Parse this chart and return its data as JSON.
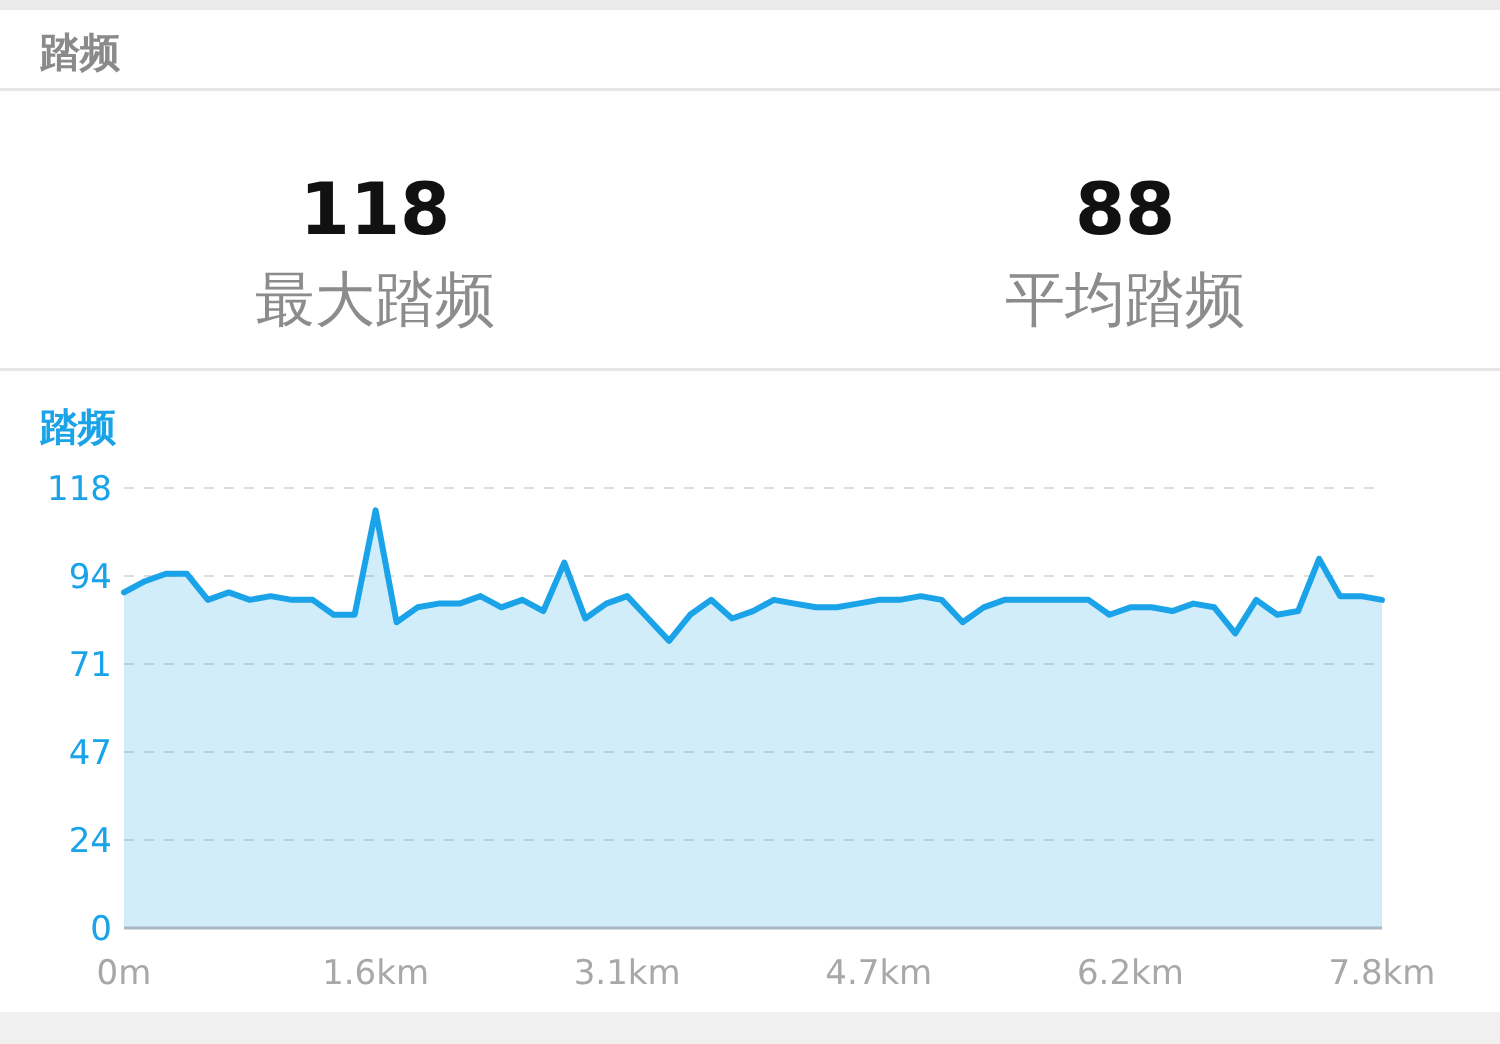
{
  "chart_data": [
    {
      "type": "other",
      "title": "踏频",
      "annotations": [
        "118",
        "最大踏频",
        "88",
        "平均踏频"
      ]
    },
    {
      "type": "area",
      "title": "踏频",
      "x": [
        0,
        0.13,
        0.26,
        0.39,
        0.52,
        0.65,
        0.78,
        0.91,
        1.04,
        1.17,
        1.3,
        1.43,
        1.56,
        1.69,
        1.82,
        1.95,
        2.08,
        2.21,
        2.34,
        2.47,
        2.6,
        2.73,
        2.86,
        2.99,
        3.12,
        3.25,
        3.38,
        3.51,
        3.64,
        3.77,
        3.9,
        4.03,
        4.16,
        4.29,
        4.42,
        4.55,
        4.68,
        4.81,
        4.94,
        5.07,
        5.2,
        5.33,
        5.46,
        5.59,
        5.72,
        5.85,
        5.98,
        6.11,
        6.24,
        6.37,
        6.5,
        6.63,
        6.76,
        6.89,
        7.02,
        7.15,
        7.28,
        7.41,
        7.54,
        7.67,
        7.8
      ],
      "xlim": [
        0,
        7.8
      ],
      "xticks": [
        {
          "value": 0,
          "label": "0m"
        },
        {
          "value": 1.56,
          "label": "1.6km"
        },
        {
          "value": 3.12,
          "label": "3.1km"
        },
        {
          "value": 4.68,
          "label": "4.7km"
        },
        {
          "value": 6.24,
          "label": "6.2km"
        },
        {
          "value": 7.8,
          "label": "7.8km"
        }
      ],
      "ylim": [
        0,
        118
      ],
      "yticks": [
        0,
        {
          "value": 23.6,
          "label": "24"
        },
        {
          "value": 47.2,
          "label": "47"
        },
        {
          "value": 70.8,
          "label": "71"
        },
        {
          "value": 94.4,
          "label": "94"
        },
        118
      ],
      "grid": "y",
      "series": [
        {
          "color": "#1aa3e8",
          "values": [
            90,
            93,
            95,
            95,
            88,
            90,
            88,
            89,
            88,
            88,
            84,
            84,
            112,
            82,
            86,
            87,
            87,
            89,
            86,
            88,
            85,
            98,
            83,
            87,
            89,
            83,
            77,
            84,
            88,
            83,
            85,
            88,
            87,
            86,
            86,
            87,
            88,
            88,
            89,
            88,
            82,
            86,
            88,
            88,
            88,
            88,
            88,
            84,
            86,
            86,
            85,
            87,
            86,
            79,
            88,
            84,
            85,
            99,
            89,
            89,
            88
          ]
        }
      ]
    }
  ]
}
